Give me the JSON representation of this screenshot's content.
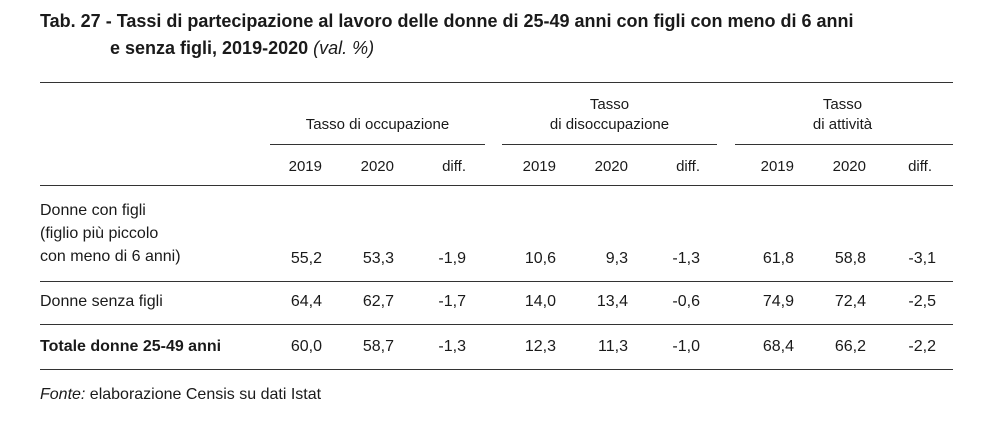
{
  "title": {
    "prefix": "Tab. 27 - ",
    "line1": "Tassi di partecipazione al lavoro delle donne di 25-49 anni con figli con meno di 6 anni",
    "line2": "e senza figli, 2019-2020",
    "unit": "(val. %)"
  },
  "groups": [
    {
      "label_line1": "",
      "label_line2": "Tasso di occupazione"
    },
    {
      "label_line1": "Tasso",
      "label_line2": "di disoccupazione"
    },
    {
      "label_line1": "Tasso",
      "label_line2": "di attività"
    }
  ],
  "subheaders": [
    "2019",
    "2020",
    "diff."
  ],
  "rows": [
    {
      "label_lines": [
        "Donne con figli",
        "(figlio più piccolo",
        "con meno di 6 anni)"
      ],
      "values": [
        "55,2",
        "53,3",
        "-1,9",
        "10,6",
        "9,3",
        "-1,3",
        "61,8",
        "58,8",
        "-3,1"
      ]
    },
    {
      "label_lines": [
        "Donne senza figli"
      ],
      "values": [
        "64,4",
        "62,7",
        "-1,7",
        "14,0",
        "13,4",
        "-0,6",
        "74,9",
        "72,4",
        "-2,5"
      ]
    },
    {
      "label_lines": [
        "Totale donne 25-49 anni"
      ],
      "values": [
        "60,0",
        "58,7",
        "-1,3",
        "12,3",
        "11,3",
        "-1,0",
        "68,4",
        "66,2",
        "-2,2"
      ]
    }
  ],
  "source": {
    "label": "Fonte:",
    "text": " elaborazione Censis su dati Istat"
  }
}
